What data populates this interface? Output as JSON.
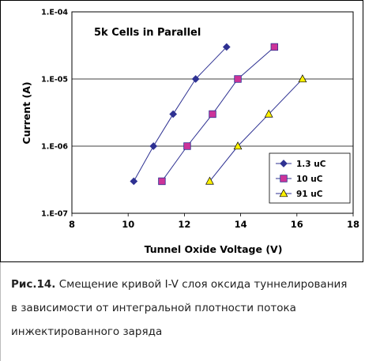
{
  "chart_data": {
    "type": "scatter",
    "title": "5k Cells in Parallel",
    "xlabel": "Tunnel Oxide Voltage (V)",
    "ylabel": "Current (A)",
    "xlim": [
      8,
      18
    ],
    "ylim": [
      1e-07,
      0.0001
    ],
    "y_scale": "log",
    "x_ticks": [
      "8",
      "10",
      "12",
      "14",
      "16",
      "18"
    ],
    "y_ticks": [
      "1.E-07",
      "1.E-06",
      "1.E-05",
      "1.E-04"
    ],
    "grid": "horizontal",
    "legend_position": "bottom-right",
    "series": [
      {
        "name": "1.3 uC",
        "marker": "diamond",
        "color": "#2E3192",
        "fill": "#2E3192",
        "x": [
          10.2,
          10.9,
          11.6,
          12.4,
          13.5
        ],
        "y": [
          3e-07,
          1e-06,
          3e-06,
          1e-05,
          3e-05
        ]
      },
      {
        "name": "10 uC",
        "marker": "square",
        "color": "#2E3192",
        "fill": "#CC3399",
        "x": [
          11.2,
          12.1,
          13.0,
          13.9,
          15.2
        ],
        "y": [
          3e-07,
          1e-06,
          3e-06,
          1e-05,
          3e-05
        ]
      },
      {
        "name": "91 uC",
        "marker": "triangle",
        "color": "#2E3192",
        "fill": "#FFF200",
        "x": [
          12.9,
          13.9,
          15.0,
          16.2
        ],
        "y": [
          3e-07,
          1e-06,
          3e-06,
          1e-05
        ]
      }
    ]
  },
  "caption": {
    "label": "Рис.14.",
    "text": "Смещение кривой I-V слоя оксида туннелирования в зависимости от интегральной плотности потока инжектированного заряда"
  }
}
